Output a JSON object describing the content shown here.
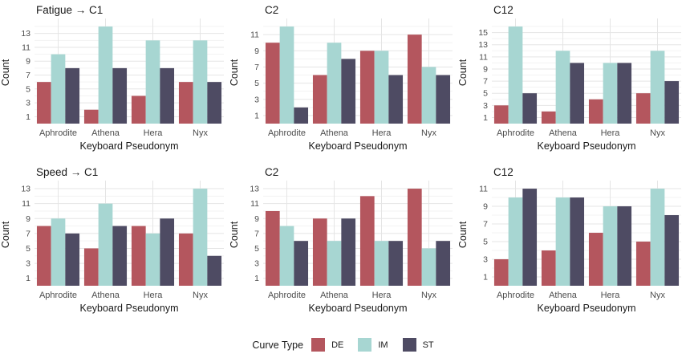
{
  "figure": {
    "background": "#ffffff",
    "n_rows": 2,
    "n_cols": 3
  },
  "colors": {
    "DE": "#B4565E",
    "IM": "#A7D6D2",
    "ST": "#4E4B63",
    "grid_major": "#E5E5E5",
    "grid_minor": "#F3F3F3",
    "tick_text": "#4D4D4D",
    "text": "#1A1A1A",
    "background": "#FFFFFF"
  },
  "legend": {
    "title": "Curve Type",
    "position": "bottom",
    "entries": [
      {
        "label": "DE",
        "color": "#B4565E"
      },
      {
        "label": "IM",
        "color": "#A7D6D2"
      },
      {
        "label": "ST",
        "color": "#4E4B63"
      }
    ]
  },
  "chart_data": [
    {
      "type": "bar",
      "row": 0,
      "col": 0,
      "title": "Fatigue → C1",
      "xlabel": "Keyboard Pseudonym",
      "ylabel": "Count",
      "categories": [
        "Aphrodite",
        "Athena",
        "Hera",
        "Nyx"
      ],
      "series": [
        {
          "name": "DE",
          "values": [
            6,
            2,
            4,
            6
          ]
        },
        {
          "name": "IM",
          "values": [
            10,
            14,
            12,
            12
          ]
        },
        {
          "name": "ST",
          "values": [
            8,
            8,
            8,
            6
          ]
        }
      ],
      "yticks": [
        1,
        3,
        5,
        7,
        9,
        11,
        13
      ],
      "ylim": [
        0,
        14.7
      ],
      "grid": true
    },
    {
      "type": "bar",
      "row": 0,
      "col": 1,
      "title": "C2",
      "xlabel": "Keyboard Pseudonym",
      "ylabel": "Count",
      "categories": [
        "Aphrodite",
        "Athena",
        "Hera",
        "Nyx"
      ],
      "series": [
        {
          "name": "DE",
          "values": [
            10,
            6,
            9,
            11
          ]
        },
        {
          "name": "IM",
          "values": [
            12,
            10,
            9,
            7
          ]
        },
        {
          "name": "ST",
          "values": [
            2,
            8,
            6,
            6
          ]
        }
      ],
      "yticks": [
        1,
        3,
        5,
        7,
        9,
        11
      ],
      "ylim": [
        0,
        12.6
      ],
      "grid": true
    },
    {
      "type": "bar",
      "row": 0,
      "col": 2,
      "title": "C12",
      "xlabel": "Keyboard Pseudonym",
      "ylabel": "Count",
      "categories": [
        "Aphrodite",
        "Athena",
        "Hera",
        "Nyx"
      ],
      "series": [
        {
          "name": "DE",
          "values": [
            3,
            2,
            4,
            5
          ]
        },
        {
          "name": "IM",
          "values": [
            16,
            12,
            10,
            12
          ]
        },
        {
          "name": "ST",
          "values": [
            5,
            10,
            10,
            7
          ]
        }
      ],
      "yticks": [
        1,
        3,
        5,
        7,
        9,
        11,
        13,
        15
      ],
      "ylim": [
        0,
        16.8
      ],
      "grid": true
    },
    {
      "type": "bar",
      "row": 1,
      "col": 0,
      "title": "Speed → C1",
      "xlabel": "Keyboard Pseudonym",
      "ylabel": "Count",
      "categories": [
        "Aphrodite",
        "Athena",
        "Hera",
        "Nyx"
      ],
      "series": [
        {
          "name": "DE",
          "values": [
            8,
            5,
            8,
            7
          ]
        },
        {
          "name": "IM",
          "values": [
            9,
            11,
            7,
            13
          ]
        },
        {
          "name": "ST",
          "values": [
            7,
            8,
            9,
            4
          ]
        }
      ],
      "yticks": [
        1,
        3,
        5,
        7,
        9,
        11,
        13
      ],
      "ylim": [
        0,
        13.65
      ],
      "grid": true
    },
    {
      "type": "bar",
      "row": 1,
      "col": 1,
      "title": "C2",
      "xlabel": "Keyboard Pseudonym",
      "ylabel": "Count",
      "categories": [
        "Aphrodite",
        "Athena",
        "Hera",
        "Nyx"
      ],
      "series": [
        {
          "name": "DE",
          "values": [
            10,
            9,
            12,
            13
          ]
        },
        {
          "name": "IM",
          "values": [
            8,
            6,
            6,
            5
          ]
        },
        {
          "name": "ST",
          "values": [
            6,
            9,
            6,
            6
          ]
        }
      ],
      "yticks": [
        1,
        3,
        5,
        7,
        9,
        11,
        13
      ],
      "ylim": [
        0,
        13.65
      ],
      "grid": true
    },
    {
      "type": "bar",
      "row": 1,
      "col": 2,
      "title": "C12",
      "xlabel": "Keyboard Pseudonym",
      "ylabel": "Count",
      "categories": [
        "Aphrodite",
        "Athena",
        "Hera",
        "Nyx"
      ],
      "series": [
        {
          "name": "DE",
          "values": [
            3,
            4,
            6,
            5
          ]
        },
        {
          "name": "IM",
          "values": [
            10,
            10,
            9,
            11
          ]
        },
        {
          "name": "ST",
          "values": [
            11,
            10,
            9,
            8
          ]
        }
      ],
      "yticks": [
        1,
        3,
        5,
        7,
        9,
        11
      ],
      "ylim": [
        0,
        11.55
      ],
      "grid": true
    }
  ]
}
